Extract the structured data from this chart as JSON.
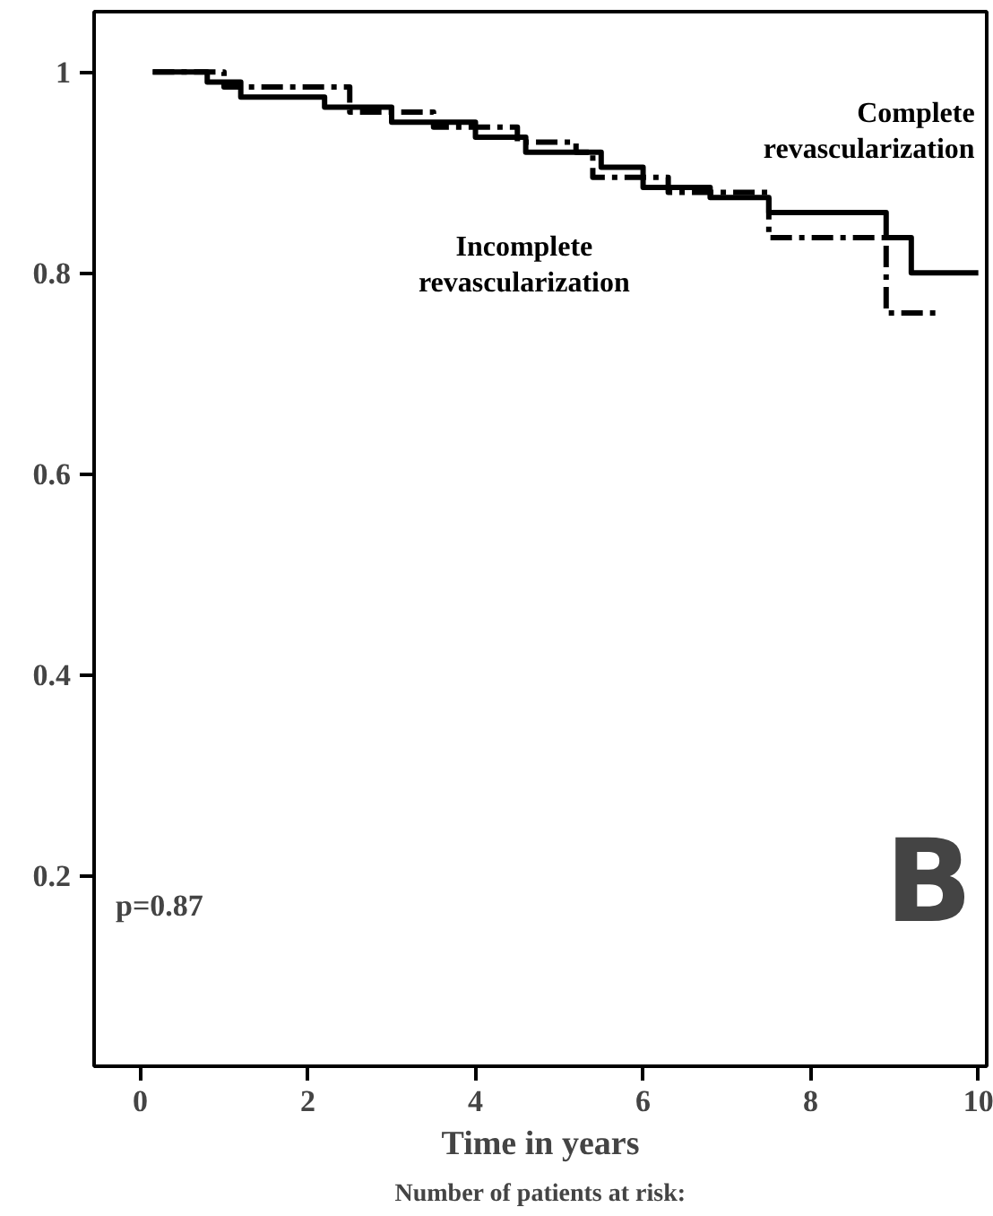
{
  "chart_data": {
    "type": "step",
    "xlabel": "Time in years",
    "xlim": [
      -0.55,
      10.1
    ],
    "ylim": [
      0.01,
      1.06
    ],
    "xticks": [
      0,
      2,
      4,
      6,
      8,
      10
    ],
    "yticks": [
      {
        "value": 0.2,
        "label": "0.2"
      },
      {
        "value": 0.4,
        "label": "0.4"
      },
      {
        "value": 0.6,
        "label": "0.6"
      },
      {
        "value": 0.8,
        "label": "0.8"
      },
      {
        "value": 1,
        "label": "1"
      }
    ],
    "grid": false,
    "legend": false,
    "series": [
      {
        "name": "Complete revascularization",
        "color": "#000000",
        "line_style": "solid",
        "x": [
          0.15,
          0.8,
          1.2,
          2.2,
          3,
          4,
          4.6,
          5.5,
          6,
          6.8,
          7.5,
          8.9,
          9.2,
          10
        ],
        "values": [
          1,
          0.99,
          0.975,
          0.965,
          0.95,
          0.935,
          0.92,
          0.905,
          0.885,
          0.875,
          0.86,
          0.835,
          0.8,
          0.8
        ]
      },
      {
        "name": "Incomplete revascularization",
        "color": "#000000",
        "line_style": "dashed",
        "x": [
          0.15,
          1,
          2.5,
          3.5,
          4.5,
          5.2,
          5.4,
          6.3,
          7.5,
          8.4,
          8.9,
          9.5
        ],
        "values": [
          1,
          0.985,
          0.96,
          0.945,
          0.93,
          0.92,
          0.895,
          0.88,
          0.835,
          0.835,
          0.76,
          0.76
        ]
      }
    ],
    "annotations": [
      "p=0.87",
      "B",
      "Number of patients at risk:"
    ]
  }
}
